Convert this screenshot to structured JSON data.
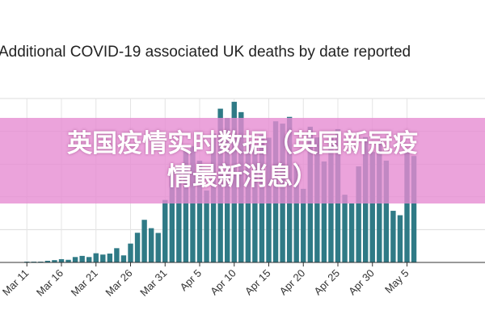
{
  "chart_data": {
    "type": "bar",
    "title": "Additional COVID-19 associated UK deaths by date reported",
    "xlabel": "",
    "ylabel": "",
    "color": "#2f7a86",
    "grid": true,
    "tick_labels": [
      "Mar 11",
      "Mar 16",
      "Mar 21",
      "Mar 26",
      "Mar 31",
      "Apr 5",
      "Apr 10",
      "Apr 15",
      "Apr 20",
      "Apr 25",
      "Apr 30",
      "May 5"
    ],
    "categories": [
      "Mar 6",
      "Mar 7",
      "Mar 8",
      "Mar 9",
      "Mar 10",
      "Mar 11",
      "Mar 12",
      "Mar 13",
      "Mar 14",
      "Mar 15",
      "Mar 16",
      "Mar 17",
      "Mar 18",
      "Mar 19",
      "Mar 20",
      "Mar 21",
      "Mar 22",
      "Mar 23",
      "Mar 24",
      "Mar 25",
      "Mar 26",
      "Mar 27",
      "Mar 28",
      "Mar 29",
      "Mar 30",
      "Mar 31",
      "Apr 1",
      "Apr 2",
      "Apr 3",
      "Apr 4",
      "Apr 5",
      "Apr 6",
      "Apr 7",
      "Apr 8",
      "Apr 9",
      "Apr 10",
      "Apr 11",
      "Apr 12",
      "Apr 13",
      "Apr 14",
      "Apr 15",
      "Apr 16",
      "Apr 17",
      "Apr 18",
      "Apr 19",
      "Apr 20",
      "Apr 21",
      "Apr 22",
      "Apr 23",
      "Apr 24",
      "Apr 25",
      "Apr 26",
      "Apr 27",
      "Apr 28",
      "Apr 29",
      "Apr 30",
      "May 1",
      "May 2",
      "May 3",
      "May 4",
      "May 5",
      "May 6"
    ],
    "values": [
      0,
      0,
      0,
      0,
      0,
      1,
      1,
      1,
      10,
      14,
      20,
      16,
      33,
      40,
      33,
      56,
      48,
      54,
      87,
      43,
      115,
      181,
      260,
      209,
      180,
      381,
      563,
      569,
      684,
      708,
      621,
      439,
      786,
      938,
      881,
      980,
      917,
      737,
      717,
      778,
      761,
      861,
      847,
      888,
      596,
      449,
      828,
      763,
      616,
      768,
      813,
      413,
      360,
      586,
      765,
      674,
      739,
      621,
      315,
      288,
      693,
      649
    ],
    "ylim": [
      0,
      1000
    ]
  },
  "banner": {
    "line1": "英国疫情实时数据（英国新冠疫",
    "line2": "情最新消息）"
  }
}
